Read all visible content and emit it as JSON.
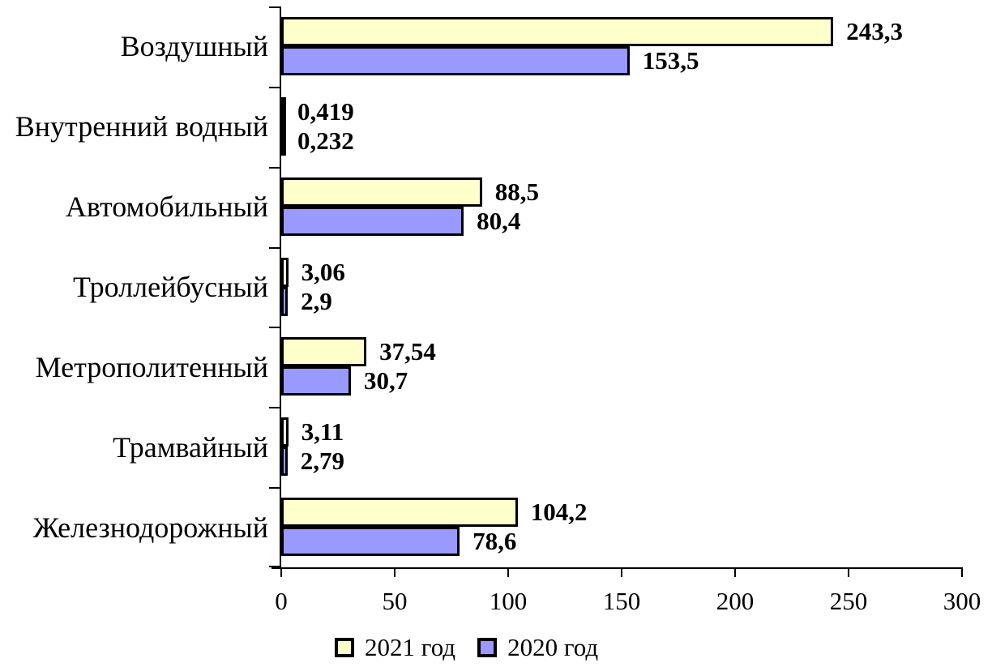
{
  "chart_data": {
    "type": "bar",
    "orientation": "horizontal",
    "title": "",
    "categories": [
      "Воздушный",
      "Внутренний водный",
      "Автомобильный",
      "Троллейбусный",
      "Метрополитенный",
      "Трамвайный",
      "Железнодорожный"
    ],
    "series": [
      {
        "name": "2021 год",
        "color": "#FFFFCC",
        "values": [
          243.3,
          0.419,
          88.5,
          3.06,
          37.54,
          3.11,
          104.2
        ],
        "value_labels": [
          "243,3",
          "0,419",
          "88,5",
          "3,06",
          "37,54",
          "3,11",
          "104,2"
        ]
      },
      {
        "name": "2020 год",
        "color": "#9999FF",
        "values": [
          153.5,
          0.232,
          80.4,
          2.9,
          30.7,
          2.79,
          78.6
        ],
        "value_labels": [
          "153,5",
          "0,232",
          "80,4",
          "2,9",
          "30,7",
          "2,79",
          "78,6"
        ]
      }
    ],
    "xlim": [
      0,
      300
    ],
    "x_ticks": [
      0,
      50,
      100,
      150,
      200,
      250,
      300
    ],
    "x_tick_labels": [
      "0",
      "50",
      "100",
      "150",
      "200",
      "250",
      "300"
    ],
    "xlabel": "",
    "ylabel": "",
    "grid": false,
    "legend_position": "bottom",
    "bar_border_color": "#000000",
    "axis_color": "#000000",
    "background_color": "#FFFFFF"
  }
}
